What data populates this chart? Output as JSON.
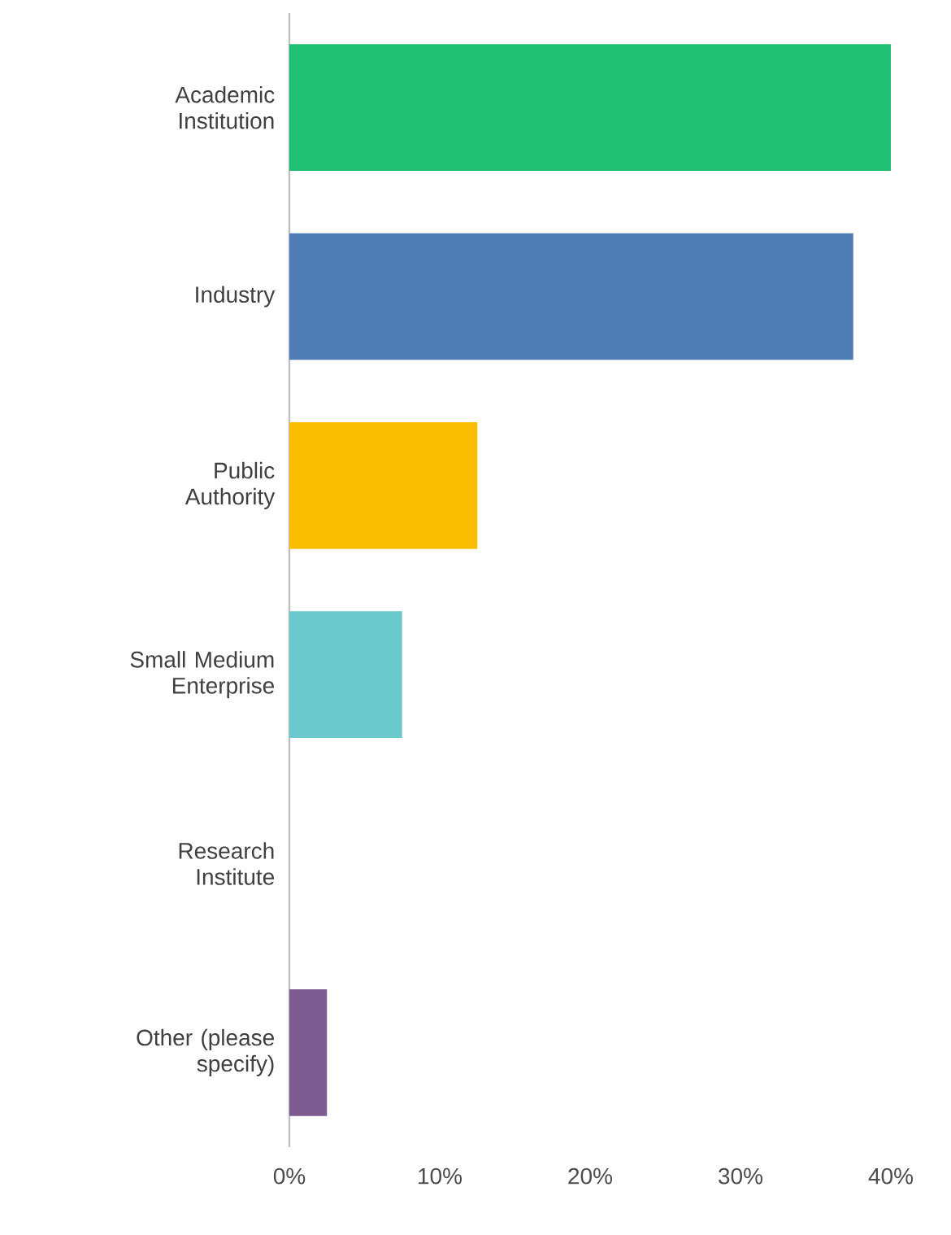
{
  "chart_data": {
    "type": "bar",
    "orientation": "horizontal",
    "categories": [
      "Academic Institution",
      "Industry",
      "Public Authority",
      "Small Medium Enterprise",
      "Research Institute",
      "Other (please specify)"
    ],
    "values": [
      40,
      37.5,
      12.5,
      7.5,
      0,
      2.5
    ],
    "colors": [
      "#21bf73",
      "#507cb6",
      "#f9be00",
      "#6bc8cd",
      "#4f6fb0",
      "#7d5c91"
    ],
    "xlim": [
      0,
      40
    ],
    "xticks": [
      {
        "value": 0,
        "label": "0%"
      },
      {
        "value": 10,
        "label": "10%"
      },
      {
        "value": 20,
        "label": "20%"
      },
      {
        "value": 30,
        "label": "30%"
      },
      {
        "value": 40,
        "label": "40%"
      }
    ],
    "tick_labels": true
  }
}
